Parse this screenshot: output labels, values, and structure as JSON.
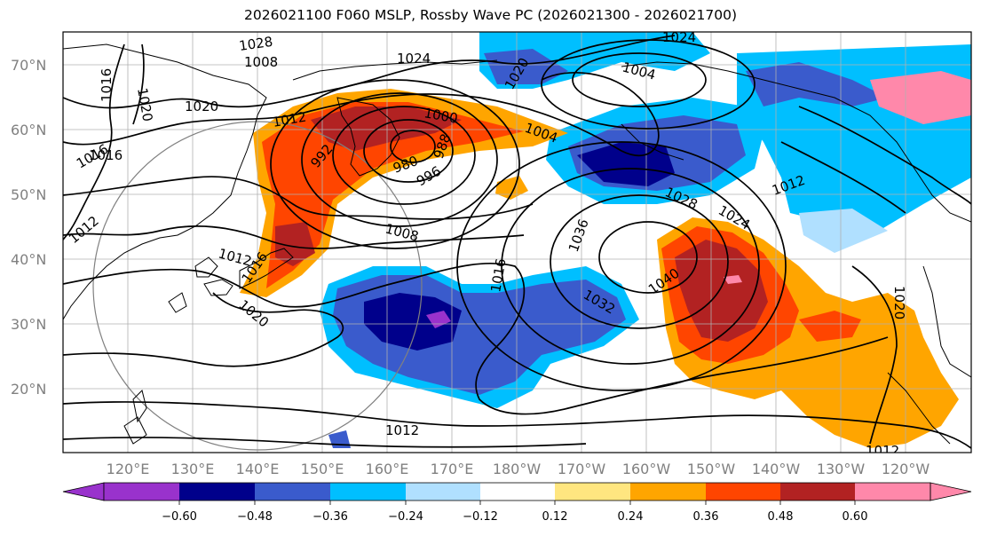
{
  "title": "2026021100 F060 MSLP, Rossby Wave PC (2026021300 - 2026021700)",
  "latitude_labels": [
    "70°N",
    "60°N",
    "50°N",
    "40°N",
    "30°N",
    "20°N"
  ],
  "longitude_labels": [
    "120°E",
    "130°E",
    "140°E",
    "150°E",
    "160°E",
    "170°E",
    "180°W",
    "170°W",
    "160°W",
    "150°W",
    "140°W",
    "130°W",
    "120°W"
  ],
  "colorbar": {
    "ticks": [
      "−0.60",
      "−0.48",
      "−0.36",
      "−0.24",
      "−0.12",
      "0.12",
      "0.24",
      "0.36",
      "0.48",
      "0.60"
    ],
    "colors": [
      "#9932cc",
      "#00008b",
      "#3a5bcc",
      "#00bfff",
      "#b0e0ff",
      "#ffffff",
      "#ffe680",
      "#ffa500",
      "#ff4500",
      "#b22222",
      "#ff88aa"
    ]
  },
  "contour_labels": [
    {
      "text": "1028"
    },
    {
      "text": "1024"
    },
    {
      "text": "1016"
    },
    {
      "text": "1020"
    },
    {
      "text": "1020"
    },
    {
      "text": "1024"
    },
    {
      "text": "1020"
    },
    {
      "text": "1004"
    },
    {
      "text": "1000"
    },
    {
      "text": "1004"
    },
    {
      "text": "1016"
    },
    {
      "text": "1012"
    },
    {
      "text": "992"
    },
    {
      "text": "988"
    },
    {
      "text": "980"
    },
    {
      "text": "996"
    },
    {
      "text": "1008"
    },
    {
      "text": "1012"
    },
    {
      "text": "1012"
    },
    {
      "text": "1016"
    },
    {
      "text": "1020"
    },
    {
      "text": "1036"
    },
    {
      "text": "1028"
    },
    {
      "text": "1024"
    },
    {
      "text": "1012"
    },
    {
      "text": "1040"
    },
    {
      "text": "1032"
    },
    {
      "text": "1016"
    },
    {
      "text": "1020"
    },
    {
      "text": "1012"
    },
    {
      "text": "1012"
    },
    {
      "text": "1008"
    },
    {
      "text": "1016"
    }
  ]
}
